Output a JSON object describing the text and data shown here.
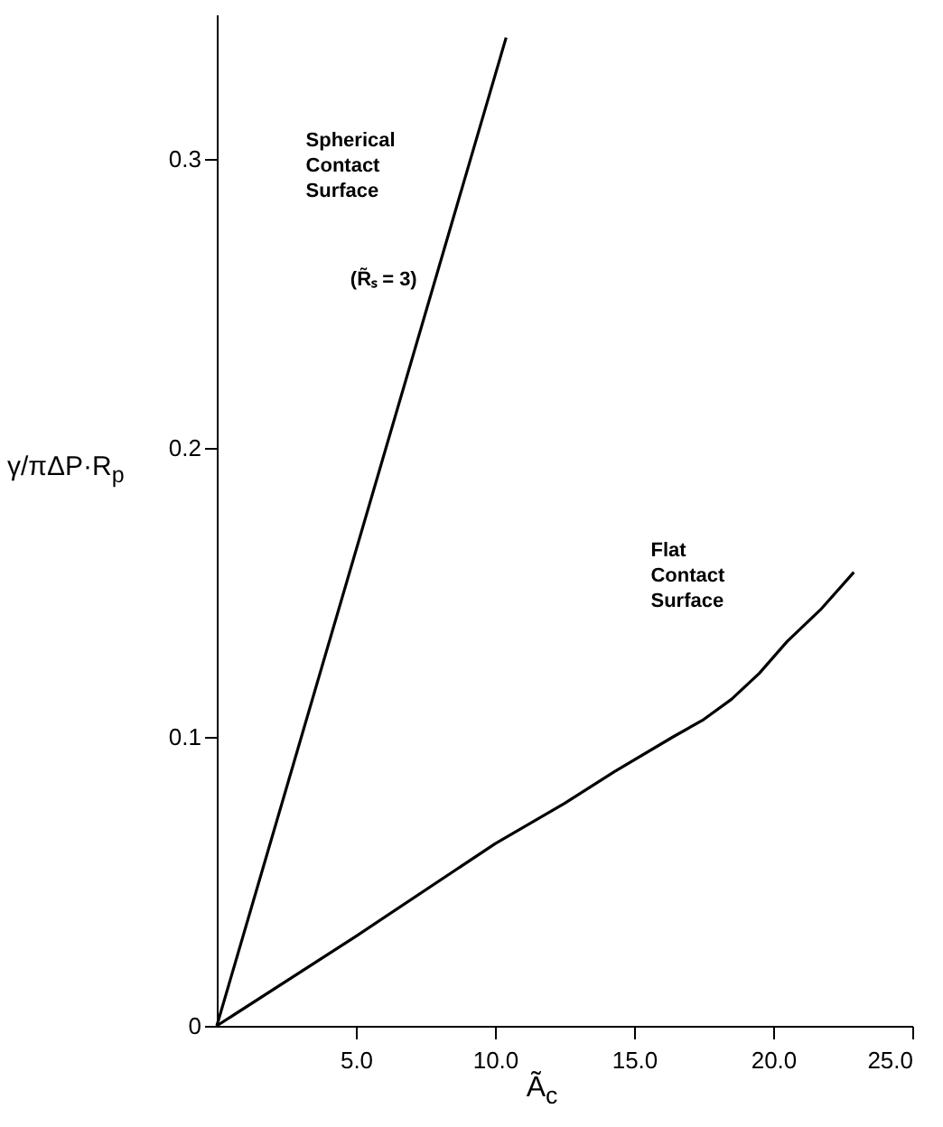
{
  "chart_data": {
    "type": "line",
    "xlabel": "Ã$_{c}$",
    "ylabel": "γ/πΔP·R$_{p}$",
    "xlim": [
      0,
      25
    ],
    "ylim": [
      0,
      0.35
    ],
    "xticks": [
      {
        "value": 5,
        "label": "5.0"
      },
      {
        "value": 10,
        "label": "10.0"
      },
      {
        "value": 15,
        "label": "15.0"
      },
      {
        "value": 20,
        "label": "20.0"
      },
      {
        "value": 25,
        "label": "25.0"
      }
    ],
    "yticks": [
      0,
      0.1,
      0.2,
      0.3
    ],
    "grid": false,
    "marker": "none",
    "line_style": "solid",
    "series": [
      {
        "color": "#000000",
        "x": [
          0,
          10.4
        ],
        "values": [
          0,
          0.342
        ]
      },
      {
        "color": "#000000",
        "x": [
          0,
          5,
          10,
          12.5,
          14.3,
          16.4,
          17.5,
          18.5,
          19.5,
          20.5,
          21.7,
          22.9
        ],
        "values": [
          0,
          0.031,
          0.063,
          0.077,
          0.088,
          0.1,
          0.106,
          0.113,
          0.122,
          0.133,
          0.144,
          0.157
        ]
      }
    ],
    "annotations": [
      "Spherical Contact Surface",
      "(R̃ₛ = 3)",
      "Flat Contact Surface"
    ]
  }
}
